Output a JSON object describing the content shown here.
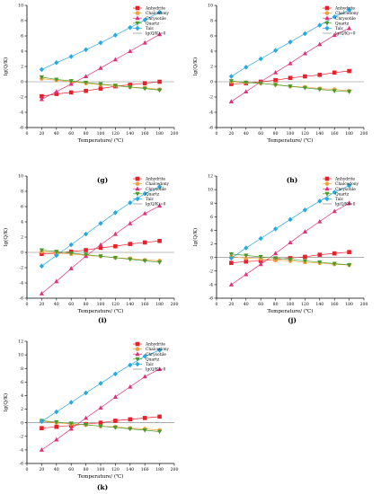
{
  "chart_data": [
    {
      "panel_label": "(g)",
      "type": "line",
      "xlabel": "Temperature/ (℃)",
      "ylabel": "lg(Q/K)",
      "xlim": [
        0,
        200
      ],
      "ylim": [
        -6,
        10
      ],
      "x_ticks": [
        0,
        20,
        40,
        60,
        80,
        100,
        120,
        140,
        160,
        180,
        200
      ],
      "y_ticks": [
        -6,
        -4,
        -2,
        0,
        2,
        4,
        6,
        8,
        10
      ],
      "x": [
        20,
        40,
        60,
        80,
        100,
        120,
        140,
        160,
        180
      ],
      "legend": "top-right",
      "reference_line": {
        "y": 0,
        "name": "lg(Q/K)=0"
      },
      "series": [
        {
          "name": "Anhydrite",
          "color": "#e8202a",
          "marker": "square",
          "values": [
            -1.9,
            -1.6,
            -1.4,
            -1.2,
            -0.9,
            -0.6,
            -0.4,
            -0.2,
            0.0
          ]
        },
        {
          "name": "Chalcedony",
          "color": "#f2a23c",
          "marker": "circle",
          "values": [
            0.4,
            0.2,
            0.0,
            -0.2,
            -0.4,
            -0.5,
            -0.7,
            -0.8,
            -1.0
          ]
        },
        {
          "name": "Chrysotile",
          "color": "#e0327a",
          "marker": "triangle-up",
          "values": [
            -2.3,
            -1.3,
            -0.3,
            0.7,
            1.8,
            2.9,
            4.0,
            5.1,
            6.2
          ]
        },
        {
          "name": "Quartz",
          "color": "#4a9a2e",
          "marker": "triangle-down",
          "values": [
            0.6,
            0.3,
            0.1,
            -0.1,
            -0.3,
            -0.5,
            -0.7,
            -0.9,
            -1.1
          ]
        },
        {
          "name": "Talc",
          "color": "#27a9e1",
          "marker": "diamond",
          "values": [
            1.6,
            2.5,
            3.3,
            4.2,
            5.1,
            6.1,
            7.1,
            8.1,
            9.1
          ]
        }
      ]
    },
    {
      "panel_label": "(h)",
      "type": "line",
      "xlabel": "Temperature/ (℃)",
      "ylabel": "lg(Q/K)",
      "xlim": [
        0,
        200
      ],
      "ylim": [
        -6,
        10
      ],
      "x_ticks": [
        0,
        20,
        40,
        60,
        80,
        100,
        120,
        140,
        160,
        180,
        200
      ],
      "y_ticks": [
        -6,
        -4,
        -2,
        0,
        2,
        4,
        6,
        8,
        10
      ],
      "x": [
        20,
        40,
        60,
        80,
        100,
        120,
        140,
        160,
        180
      ],
      "legend": "top-right",
      "reference_line": {
        "y": 0,
        "name": "lg(Q/K)=0"
      },
      "series": [
        {
          "name": "Anhydrite",
          "color": "#e8202a",
          "marker": "square",
          "values": [
            -0.3,
            -0.2,
            0.0,
            0.2,
            0.5,
            0.7,
            0.9,
            1.2,
            1.4
          ]
        },
        {
          "name": "Chalcedony",
          "color": "#f2a23c",
          "marker": "circle",
          "values": [
            0.0,
            -0.1,
            -0.2,
            -0.4,
            -0.6,
            -0.7,
            -0.9,
            -1.0,
            -1.2
          ]
        },
        {
          "name": "Chrysotile",
          "color": "#e0327a",
          "marker": "triangle-up",
          "values": [
            -2.6,
            -1.3,
            0.0,
            1.2,
            2.4,
            3.7,
            4.9,
            6.1,
            7.0
          ]
        },
        {
          "name": "Quartz",
          "color": "#4a9a2e",
          "marker": "triangle-down",
          "values": [
            0.1,
            -0.1,
            -0.2,
            -0.4,
            -0.6,
            -0.8,
            -1.0,
            -1.2,
            -1.3
          ]
        },
        {
          "name": "Talc",
          "color": "#27a9e1",
          "marker": "diamond",
          "values": [
            0.7,
            1.9,
            3.0,
            4.1,
            5.2,
            6.3,
            7.4,
            8.5,
            9.4
          ]
        }
      ]
    },
    {
      "panel_label": "(i)",
      "type": "line",
      "xlabel": "Temperature/ (℃)",
      "ylabel": "lg(Q/K)",
      "xlim": [
        0,
        200
      ],
      "ylim": [
        -6,
        10
      ],
      "x_ticks": [
        0,
        20,
        40,
        60,
        80,
        100,
        120,
        140,
        160,
        180,
        200
      ],
      "y_ticks": [
        -6,
        -4,
        -2,
        0,
        2,
        4,
        6,
        8,
        10
      ],
      "x": [
        20,
        40,
        60,
        80,
        100,
        120,
        140,
        160,
        180
      ],
      "legend": "top-right",
      "reference_line": {
        "y": 0,
        "name": "lg(Q/K)=0"
      },
      "series": [
        {
          "name": "Anhydrite",
          "color": "#e8202a",
          "marker": "square",
          "values": [
            -0.2,
            -0.1,
            0.1,
            0.3,
            0.6,
            0.8,
            1.1,
            1.3,
            1.5
          ]
        },
        {
          "name": "Chalcedony",
          "color": "#f2a23c",
          "marker": "circle",
          "values": [
            0.1,
            -0.1,
            -0.2,
            -0.4,
            -0.5,
            -0.7,
            -0.8,
            -1.0,
            -1.1
          ]
        },
        {
          "name": "Chrysotile",
          "color": "#e0327a",
          "marker": "triangle-up",
          "values": [
            -5.4,
            -3.8,
            -2.1,
            -0.5,
            1.0,
            2.4,
            3.8,
            5.1,
            6.1
          ]
        },
        {
          "name": "Quartz",
          "color": "#4a9a2e",
          "marker": "triangle-down",
          "values": [
            0.3,
            0.1,
            -0.1,
            -0.3,
            -0.5,
            -0.7,
            -0.9,
            -1.1,
            -1.3
          ]
        },
        {
          "name": "Talc",
          "color": "#27a9e1",
          "marker": "diamond",
          "values": [
            -1.8,
            -0.4,
            1.0,
            2.4,
            3.8,
            5.2,
            6.5,
            7.7,
            8.6
          ]
        }
      ]
    },
    {
      "panel_label": "(j)",
      "type": "line",
      "xlabel": "Temperature/ (℃)",
      "ylabel": "lg(Q/K)",
      "xlim": [
        0,
        200
      ],
      "ylim": [
        -6,
        12
      ],
      "x_ticks": [
        0,
        20,
        40,
        60,
        80,
        100,
        120,
        140,
        160,
        180,
        200
      ],
      "y_ticks": [
        -6,
        -4,
        -2,
        0,
        2,
        4,
        6,
        8,
        10,
        12
      ],
      "x": [
        20,
        40,
        60,
        80,
        100,
        120,
        140,
        160,
        180
      ],
      "legend": "top-right",
      "reference_line": {
        "y": 0,
        "name": "lg(Q/K)=0"
      },
      "series": [
        {
          "name": "Anhydrite",
          "color": "#e8202a",
          "marker": "square",
          "values": [
            -0.8,
            -0.6,
            -0.5,
            -0.3,
            -0.1,
            0.1,
            0.4,
            0.6,
            0.8
          ]
        },
        {
          "name": "Chalcedony",
          "color": "#f2a23c",
          "marker": "circle",
          "values": [
            0.1,
            -0.1,
            -0.2,
            -0.4,
            -0.5,
            -0.7,
            -0.8,
            -1.0,
            -1.1
          ]
        },
        {
          "name": "Chrysotile",
          "color": "#e0327a",
          "marker": "triangle-up",
          "values": [
            -4.0,
            -2.5,
            -1.0,
            0.6,
            2.2,
            3.8,
            5.3,
            6.8,
            8.0
          ]
        },
        {
          "name": "Quartz",
          "color": "#4a9a2e",
          "marker": "triangle-down",
          "values": [
            0.5,
            0.3,
            0.1,
            -0.1,
            -0.3,
            -0.5,
            -0.7,
            -0.9,
            -1.1
          ]
        },
        {
          "name": "Talc",
          "color": "#27a9e1",
          "marker": "diamond",
          "values": [
            -0.1,
            1.4,
            2.8,
            4.2,
            5.6,
            7.0,
            8.3,
            9.6,
            10.6
          ]
        }
      ]
    },
    {
      "panel_label": "(k)",
      "type": "line",
      "xlabel": "Temperature/ (℃)",
      "ylabel": "lg(Q/K)",
      "xlim": [
        0,
        200
      ],
      "ylim": [
        -6,
        12
      ],
      "x_ticks": [
        0,
        20,
        40,
        60,
        80,
        100,
        120,
        140,
        160,
        180,
        200
      ],
      "y_ticks": [
        -6,
        -4,
        -2,
        0,
        2,
        4,
        6,
        8,
        10,
        12
      ],
      "x": [
        20,
        40,
        60,
        80,
        100,
        120,
        140,
        160,
        180
      ],
      "legend": "top-right",
      "reference_line": {
        "y": 0,
        "name": "lg(Q/K)=0"
      },
      "series": [
        {
          "name": "Anhydrite",
          "color": "#e8202a",
          "marker": "square",
          "values": [
            -0.8,
            -0.6,
            -0.4,
            -0.2,
            0.0,
            0.3,
            0.5,
            0.7,
            0.9
          ]
        },
        {
          "name": "Chalcedony",
          "color": "#f2a23c",
          "marker": "circle",
          "values": [
            0.2,
            0.0,
            -0.2,
            -0.3,
            -0.5,
            -0.6,
            -0.8,
            -0.9,
            -1.1
          ]
        },
        {
          "name": "Chrysotile",
          "color": "#e0327a",
          "marker": "triangle-up",
          "values": [
            -4.0,
            -2.5,
            -0.9,
            0.7,
            2.2,
            3.8,
            5.3,
            6.8,
            7.9
          ]
        },
        {
          "name": "Quartz",
          "color": "#4a9a2e",
          "marker": "triangle-down",
          "values": [
            0.3,
            0.1,
            -0.1,
            -0.3,
            -0.5,
            -0.7,
            -0.9,
            -1.1,
            -1.3
          ]
        },
        {
          "name": "Talc",
          "color": "#27a9e1",
          "marker": "diamond",
          "values": [
            0.2,
            1.6,
            3.0,
            4.4,
            5.8,
            7.2,
            8.5,
            9.8,
            10.7
          ]
        }
      ]
    }
  ]
}
